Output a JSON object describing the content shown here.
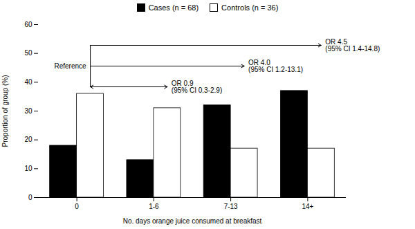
{
  "chart_data": {
    "type": "bar",
    "categories": [
      "0",
      "1-6",
      "7-13",
      "14+"
    ],
    "series": [
      {
        "name": "Cases (n = 68)",
        "color": "#000000",
        "values": [
          18,
          13,
          32,
          37
        ]
      },
      {
        "name": "Controls (n = 36)",
        "color": "#ffffff",
        "values": [
          36,
          31,
          17,
          17
        ]
      }
    ],
    "xlabel": "No. days orange juice consumed at breakfast",
    "ylabel": "Proportion of group (%)",
    "ylim": [
      0,
      60
    ],
    "yticks": [
      0,
      10,
      20,
      30,
      40,
      50,
      60
    ],
    "legend": "upper center",
    "annotations": [
      "Reference",
      "OR 0.9\n(95% CI 0.3-2.9)",
      "OR 4.0\n(95% CI 1.2-13.1)",
      "OR 4.5\n(95% CI 1.4-14.8)"
    ]
  }
}
